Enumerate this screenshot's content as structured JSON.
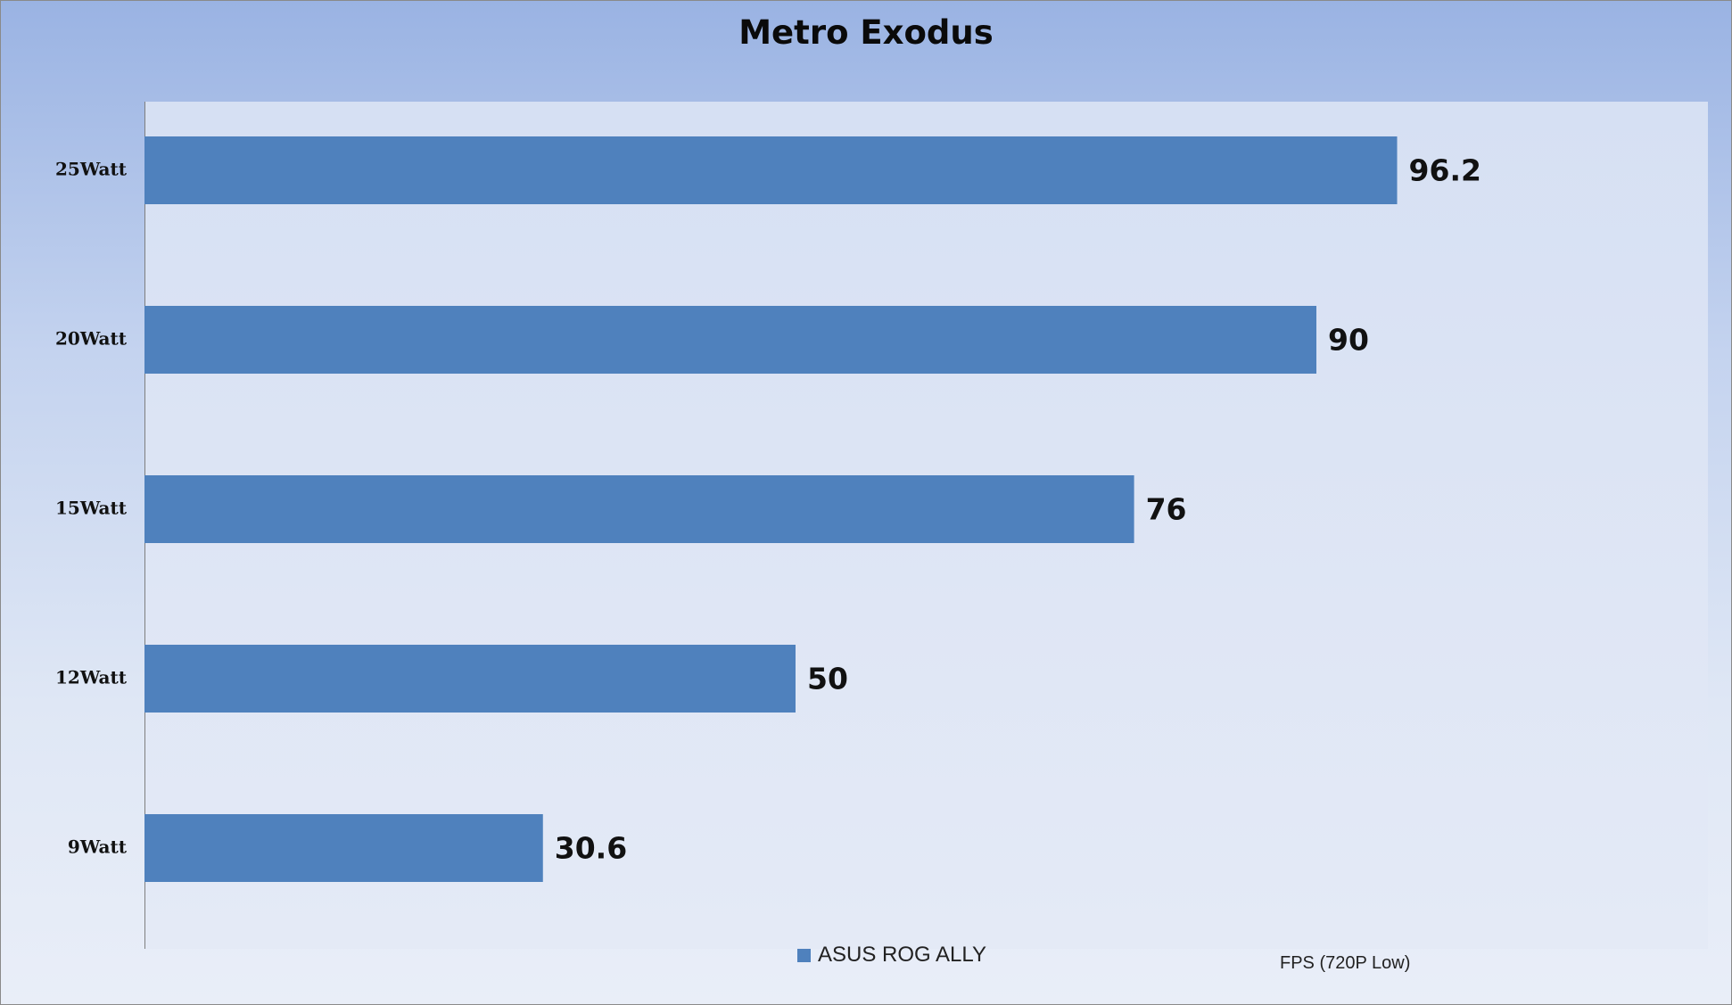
{
  "chart_data": {
    "type": "bar",
    "orientation": "horizontal",
    "title": "Metro Exodus",
    "categories": [
      "25Watt",
      "20Watt",
      "15Watt",
      "12Watt",
      "9Watt"
    ],
    "series": [
      {
        "name": "ASUS ROG ALLY",
        "values": [
          96.2,
          90,
          76,
          50,
          30.6
        ],
        "color": "#4f81bd"
      }
    ],
    "value_labels": [
      "96.2",
      "90",
      "76",
      "50",
      "30.6"
    ],
    "xlabel": "FPS (720P Low)",
    "ylabel": "",
    "xlim": [
      0,
      120
    ],
    "grid": false,
    "legend": {
      "position": "bottom",
      "entries": [
        "ASUS ROG ALLY"
      ]
    }
  }
}
